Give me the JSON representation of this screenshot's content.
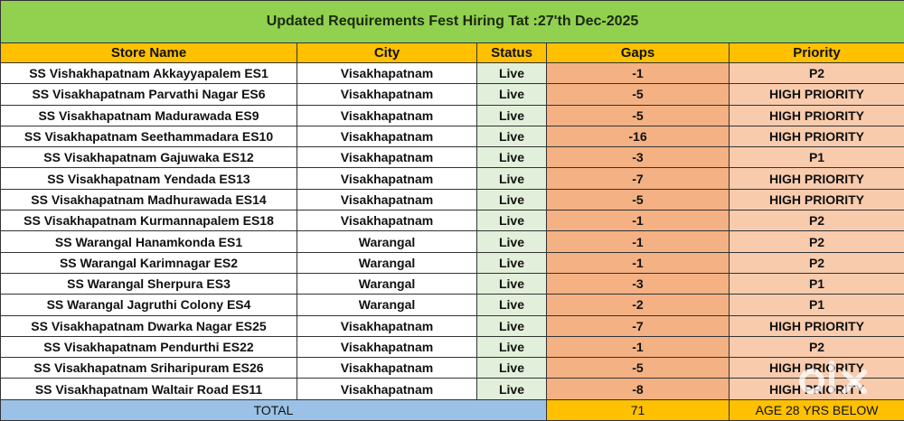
{
  "title": "Updated Requirements Fest Hiring Tat :27'th Dec-2025",
  "headers": [
    "Store Name",
    "City",
    "Status",
    "Gaps",
    "Priority"
  ],
  "rows": [
    {
      "store": "SS Vishakhapatnam Akkayyapalem ES1",
      "city": "Visakhapatnam",
      "status": "Live",
      "gaps": "-1",
      "priority": "P2"
    },
    {
      "store": "SS Visakhapatnam Parvathi Nagar ES6",
      "city": "Visakhapatnam",
      "status": "Live",
      "gaps": "-5",
      "priority": "HIGH PRIORITY"
    },
    {
      "store": "SS Visakhapatnam Madurawada ES9",
      "city": "Visakhapatnam",
      "status": "Live",
      "gaps": "-5",
      "priority": "HIGH PRIORITY"
    },
    {
      "store": "SS Visakhapatnam Seethammadara ES10",
      "city": "Visakhapatnam",
      "status": "Live",
      "gaps": "-16",
      "priority": "HIGH PRIORITY"
    },
    {
      "store": "SS Visakhapatnam Gajuwaka ES12",
      "city": "Visakhapatnam",
      "status": "Live",
      "gaps": "-3",
      "priority": "P1"
    },
    {
      "store": "SS Visakhapatnam Yendada ES13",
      "city": "Visakhapatnam",
      "status": "Live",
      "gaps": "-7",
      "priority": "HIGH PRIORITY"
    },
    {
      "store": "SS Visakhapatnam Madhurawada ES14",
      "city": "Visakhapatnam",
      "status": "Live",
      "gaps": "-5",
      "priority": "HIGH PRIORITY"
    },
    {
      "store": "SS Visakhapatnam Kurmannapalem ES18",
      "city": "Visakhapatnam",
      "status": "Live",
      "gaps": "-1",
      "priority": "P2"
    },
    {
      "store": "SS Warangal Hanamkonda ES1",
      "city": "Warangal",
      "status": "Live",
      "gaps": "-1",
      "priority": "P2"
    },
    {
      "store": "SS Warangal Karimnagar ES2",
      "city": "Warangal",
      "status": "Live",
      "gaps": "-1",
      "priority": "P2"
    },
    {
      "store": "SS Warangal Sherpura ES3",
      "city": "Warangal",
      "status": "Live",
      "gaps": "-3",
      "priority": "P1"
    },
    {
      "store": "SS Warangal Jagruthi Colony ES4",
      "city": "Warangal",
      "status": "Live",
      "gaps": "-2",
      "priority": "P1"
    },
    {
      "store": "SS Visakhapatnam Dwarka Nagar ES25",
      "city": "Visakhapatnam",
      "status": "Live",
      "gaps": "-7",
      "priority": "HIGH PRIORITY"
    },
    {
      "store": "SS Visakhapatnam Pendurthi ES22",
      "city": "Visakhapatnam",
      "status": "Live",
      "gaps": "-1",
      "priority": "P2"
    },
    {
      "store": "SS Visakhapatnam Sriharipuram ES26",
      "city": "Visakhapatnam",
      "status": "Live",
      "gaps": "-5",
      "priority": "HIGH PRIORITY"
    },
    {
      "store": "SS Visakhapatnam Waltair Road ES11",
      "city": "Visakhapatnam",
      "status": "Live",
      "gaps": "-8",
      "priority": "HIGH PRIORITY"
    }
  ],
  "total": {
    "label": "TOTAL",
    "gaps": "71",
    "note": "AGE 28 YRS BELOW"
  },
  "watermark": "olx",
  "colors": {
    "title_bg": "#92d050",
    "header_bg": "#ffc000",
    "status_bg": "#e2efda",
    "gaps_bg": "#f4b183",
    "priority_bg": "#f8cbad",
    "total_bg": "#9bc2e6"
  }
}
